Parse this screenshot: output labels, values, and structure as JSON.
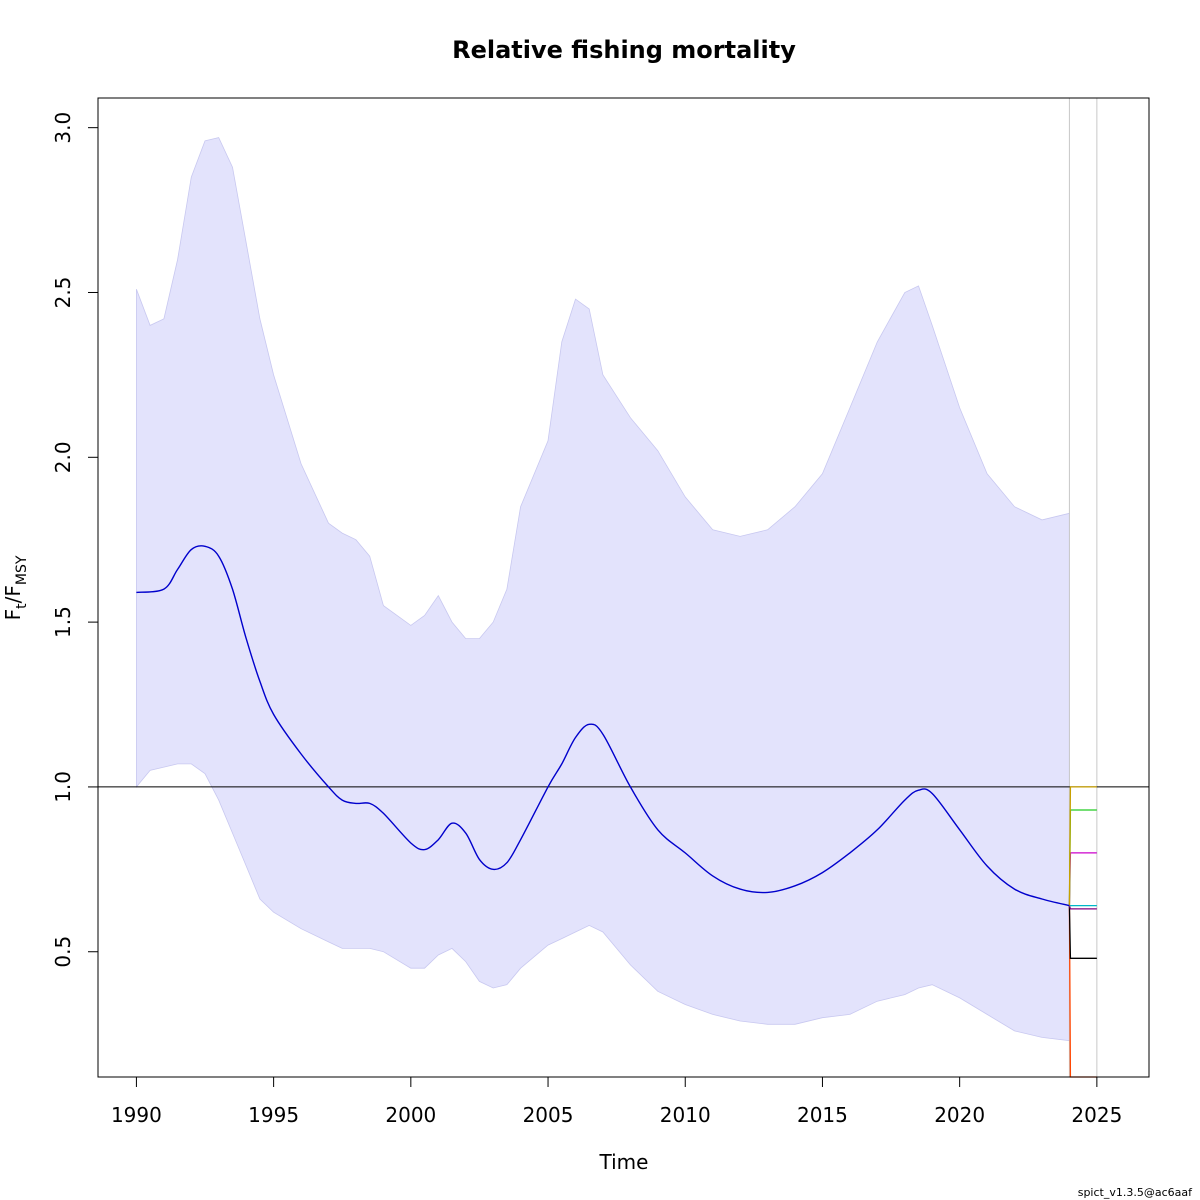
{
  "chart_data": {
    "type": "line",
    "title": "Relative fishing mortality",
    "xlabel": "Time",
    "ylabel": {
      "main": "F",
      "sub1": "t",
      "sep": "/F",
      "sub2": "MSY"
    },
    "footer": "spict_v1.3.5@ac6aaf",
    "xlim": [
      1988.6,
      2026.9
    ],
    "ylim": [
      0.12,
      3.09
    ],
    "x_ticks": [
      1990,
      1995,
      2000,
      2005,
      2010,
      2015,
      2020,
      2025
    ],
    "y_ticks": [
      0.5,
      1.0,
      1.5,
      2.0,
      2.5,
      3.0
    ],
    "x_tick_labels": [
      "1990",
      "1995",
      "2000",
      "2005",
      "2010",
      "2015",
      "2020",
      "2025"
    ],
    "y_tick_labels": [
      "0.5",
      "1.0",
      "1.5",
      "2.0",
      "2.5",
      "3.0"
    ],
    "reference_line": {
      "y": 1.0,
      "color": "#000000"
    },
    "vertical_lines": [
      2024,
      2025
    ],
    "grid": false,
    "colors": {
      "estimate": "#0000cc",
      "ci_fill": "#e3e3fc",
      "ci_edge": "#c8c8f0",
      "vline": "#c8c8c8"
    },
    "series": [
      {
        "role": "estimate",
        "x": [
          1990,
          1991,
          1991.5,
          1992,
          1992.5,
          1993,
          1993.5,
          1994,
          1994.5,
          1995,
          1996,
          1997,
          1997.5,
          1998,
          1998.5,
          1999,
          2000,
          2000.5,
          2001,
          2001.5,
          2002,
          2002.5,
          2003,
          2003.5,
          2004,
          2005,
          2005.5,
          2006,
          2006.5,
          2007,
          2008,
          2009,
          2010,
          2011,
          2012,
          2013,
          2014,
          2015,
          2016,
          2017,
          2018,
          2018.5,
          2019,
          2020,
          2021,
          2022,
          2023,
          2024
        ],
        "y": [
          1.59,
          1.6,
          1.66,
          1.72,
          1.73,
          1.7,
          1.6,
          1.45,
          1.32,
          1.22,
          1.1,
          1.0,
          0.96,
          0.95,
          0.95,
          0.92,
          0.83,
          0.81,
          0.84,
          0.89,
          0.86,
          0.78,
          0.75,
          0.77,
          0.84,
          1.0,
          1.07,
          1.15,
          1.19,
          1.16,
          1.0,
          0.87,
          0.8,
          0.73,
          0.69,
          0.68,
          0.7,
          0.74,
          0.8,
          0.87,
          0.96,
          0.99,
          0.98,
          0.87,
          0.76,
          0.69,
          0.66,
          0.64
        ]
      },
      {
        "role": "ci_upper",
        "x": [
          1990,
          1990.5,
          1991,
          1991.5,
          1992,
          1992.5,
          1993,
          1993.5,
          1994,
          1994.5,
          1995,
          1996,
          1997,
          1997.5,
          1998,
          1998.5,
          1999,
          2000,
          2000.5,
          2001,
          2001.5,
          2002,
          2002.5,
          2003,
          2003.5,
          2004,
          2005,
          2005.5,
          2006,
          2006.5,
          2007,
          2008,
          2009,
          2010,
          2011,
          2012,
          2013,
          2014,
          2015,
          2016,
          2017,
          2018,
          2018.5,
          2019,
          2020,
          2021,
          2022,
          2023,
          2024
        ],
        "y": [
          2.51,
          2.4,
          2.42,
          2.6,
          2.85,
          2.96,
          2.97,
          2.88,
          2.65,
          2.42,
          2.25,
          1.98,
          1.8,
          1.77,
          1.75,
          1.7,
          1.55,
          1.49,
          1.52,
          1.58,
          1.5,
          1.45,
          1.45,
          1.5,
          1.6,
          1.85,
          2.05,
          2.35,
          2.48,
          2.45,
          2.25,
          2.12,
          2.02,
          1.88,
          1.78,
          1.76,
          1.78,
          1.85,
          1.95,
          2.15,
          2.35,
          2.5,
          2.52,
          2.4,
          2.15,
          1.95,
          1.85,
          1.81,
          1.83
        ]
      },
      {
        "role": "ci_lower",
        "x": [
          1990,
          1990.5,
          1991,
          1991.5,
          1992,
          1992.5,
          1993,
          1993.5,
          1994,
          1994.5,
          1995,
          1996,
          1997,
          1997.5,
          1998,
          1998.5,
          1999,
          2000,
          2000.5,
          2001,
          2001.5,
          2002,
          2002.5,
          2003,
          2003.5,
          2004,
          2005,
          2005.5,
          2006,
          2006.5,
          2007,
          2008,
          2009,
          2010,
          2011,
          2012,
          2013,
          2014,
          2015,
          2016,
          2017,
          2018,
          2018.5,
          2019,
          2020,
          2021,
          2022,
          2023,
          2024
        ],
        "y": [
          1.0,
          1.05,
          1.06,
          1.07,
          1.07,
          1.04,
          0.96,
          0.86,
          0.76,
          0.66,
          0.62,
          0.57,
          0.53,
          0.51,
          0.51,
          0.51,
          0.5,
          0.45,
          0.45,
          0.49,
          0.51,
          0.47,
          0.41,
          0.39,
          0.4,
          0.45,
          0.52,
          0.54,
          0.56,
          0.58,
          0.56,
          0.46,
          0.38,
          0.34,
          0.31,
          0.29,
          0.28,
          0.28,
          0.3,
          0.31,
          0.35,
          0.37,
          0.39,
          0.4,
          0.36,
          0.31,
          0.26,
          0.24,
          0.23
        ]
      }
    ],
    "forecast_scenarios": [
      {
        "color": "#ff4500",
        "start": 0.64,
        "level": 0.0
      },
      {
        "color": "#000000",
        "start": 0.64,
        "level": 0.48
      },
      {
        "color": "#800080",
        "start": 0.64,
        "level": 0.63
      },
      {
        "color": "#00b8c8",
        "start": 0.64,
        "level": 0.64
      },
      {
        "color": "#cc00cc",
        "start": 0.64,
        "level": 0.8
      },
      {
        "color": "#22cc22",
        "start": 0.64,
        "level": 0.93
      },
      {
        "color": "#c8a000",
        "start": 0.64,
        "level": 1.0
      }
    ],
    "forecast_x": [
      2024,
      2025
    ]
  }
}
